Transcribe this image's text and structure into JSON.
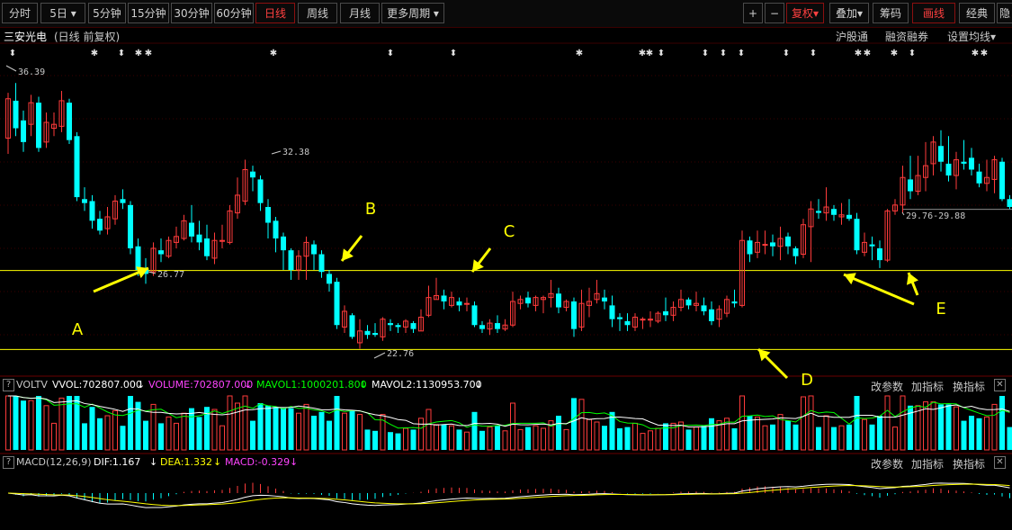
{
  "toolbar": {
    "periods": [
      "分时",
      "5日",
      "5分钟",
      "15分钟",
      "30分钟",
      "60分钟",
      "日线",
      "周线",
      "月线",
      "更多周期"
    ],
    "dropdown_arrow": "▾",
    "plus": "+",
    "minus": "−",
    "fuquan": "复权",
    "diejia": "叠加",
    "chouma": "筹码",
    "huaxian": "画线",
    "jingdian": "经典",
    "yin": "隐"
  },
  "info": {
    "stock_name": "三安光电",
    "period_desc": "(日线 前复权)",
    "hugutong": "沪股通",
    "rongzi": "融资融券",
    "settings": "设置均线"
  },
  "chart_data": {
    "type": "candlestick",
    "annotations": [
      {
        "label": "36.39"
      },
      {
        "label": "32.38"
      },
      {
        "label": "26.77"
      },
      {
        "label": "22.76"
      },
      {
        "label": "29.76-29.88"
      }
    ],
    "arrow_labels": [
      "A",
      "B",
      "C",
      "D",
      "E"
    ],
    "support_line_levels": [
      26.77,
      22.76,
      29.88
    ],
    "price_range": [
      22.0,
      37.5
    ],
    "candles": [
      [
        33.5,
        35.5,
        35.8,
        32.7
      ],
      [
        35.4,
        34.0,
        36.3,
        33.6
      ],
      [
        34.4,
        33.3,
        34.9,
        32.8
      ],
      [
        34.2,
        35.3,
        35.7,
        33.6
      ],
      [
        35.3,
        33.0,
        35.6,
        32.8
      ],
      [
        33.3,
        34.3,
        34.8,
        33.0
      ],
      [
        34.0,
        34.2,
        34.8,
        33.6
      ],
      [
        34.1,
        35.4,
        35.9,
        33.8
      ],
      [
        35.3,
        33.4,
        35.5,
        33.2
      ],
      [
        33.6,
        30.5,
        33.8,
        30.3
      ],
      [
        30.4,
        30.2,
        31.0,
        29.8
      ],
      [
        30.3,
        29.3,
        30.6,
        28.9
      ],
      [
        29.4,
        28.8,
        29.8,
        28.6
      ],
      [
        28.9,
        29.5,
        30.0,
        28.6
      ],
      [
        29.4,
        30.3,
        30.6,
        29.1
      ],
      [
        30.4,
        30.2,
        30.9,
        29.9
      ],
      [
        30.1,
        27.9,
        30.3,
        27.6
      ],
      [
        28.0,
        26.8,
        28.4,
        26.5
      ],
      [
        26.9,
        26.6,
        27.4,
        26.1
      ],
      [
        26.7,
        27.9,
        28.2,
        26.5
      ],
      [
        27.8,
        27.6,
        28.4,
        27.2
      ],
      [
        27.5,
        28.3,
        28.5,
        27.4
      ],
      [
        28.2,
        28.5,
        29.0,
        27.9
      ],
      [
        28.4,
        29.3,
        29.6,
        28.3
      ],
      [
        29.2,
        28.5,
        30.1,
        28.2
      ],
      [
        28.6,
        28.2,
        29.3,
        27.8
      ],
      [
        28.4,
        27.5,
        29.1,
        27.3
      ],
      [
        27.4,
        28.3,
        28.7,
        27.1
      ],
      [
        28.3,
        28.3,
        29.1,
        27.9
      ],
      [
        28.2,
        29.8,
        30.1,
        28.1
      ],
      [
        29.7,
        30.6,
        31.5,
        29.4
      ],
      [
        30.3,
        31.9,
        32.4,
        30.1
      ],
      [
        31.8,
        31.5,
        32.1,
        30.8
      ],
      [
        31.4,
        30.2,
        31.6,
        29.8
      ],
      [
        30.0,
        29.2,
        30.4,
        28.4
      ],
      [
        29.3,
        28.4,
        29.5,
        27.7
      ],
      [
        28.5,
        27.8,
        28.7,
        26.8
      ],
      [
        27.8,
        26.8,
        27.9,
        26.3
      ],
      [
        26.8,
        27.5,
        27.8,
        26.3
      ],
      [
        27.5,
        28.2,
        28.5,
        26.3
      ],
      [
        28.1,
        27.6,
        28.3,
        26.8
      ],
      [
        27.6,
        26.7,
        27.8,
        26.4
      ],
      [
        26.6,
        26.1,
        26.8,
        25.7
      ],
      [
        26.2,
        24.0,
        26.4,
        23.8
      ],
      [
        23.9,
        24.7,
        25.0,
        23.6
      ],
      [
        24.5,
        23.4,
        24.6,
        23.3
      ],
      [
        23.1,
        23.7,
        24.3,
        22.8
      ],
      [
        23.7,
        23.5,
        24.0,
        23.3
      ],
      [
        23.6,
        23.5,
        24.1,
        23.4
      ],
      [
        23.4,
        24.3,
        24.4,
        23.2
      ],
      [
        24.1,
        24.0,
        24.3,
        23.7
      ],
      [
        24.0,
        23.9,
        24.1,
        23.6
      ],
      [
        23.9,
        24.2,
        24.3,
        23.6
      ],
      [
        24.1,
        23.8,
        24.2,
        23.6
      ],
      [
        23.7,
        24.4,
        24.8,
        23.7
      ],
      [
        24.5,
        25.4,
        26.0,
        24.4
      ],
      [
        25.3,
        25.5,
        26.4,
        25.3
      ],
      [
        25.5,
        25.2,
        25.8,
        24.8
      ],
      [
        25.0,
        25.4,
        25.7,
        24.9
      ],
      [
        25.2,
        25.0,
        25.4,
        24.7
      ],
      [
        25.1,
        25.1,
        25.4,
        24.7
      ],
      [
        25.0,
        24.0,
        25.2,
        23.9
      ],
      [
        24.0,
        23.8,
        24.2,
        23.6
      ],
      [
        23.8,
        24.1,
        24.3,
        23.5
      ],
      [
        24.1,
        23.8,
        24.5,
        23.6
      ],
      [
        23.8,
        24.0,
        24.3,
        23.7
      ],
      [
        24.0,
        25.2,
        25.7,
        23.9
      ],
      [
        25.1,
        25.3,
        25.5,
        24.8
      ],
      [
        25.4,
        25.1,
        25.7,
        24.9
      ],
      [
        25.0,
        25.4,
        25.5,
        24.7
      ],
      [
        25.3,
        25.4,
        25.5,
        24.6
      ],
      [
        25.4,
        25.6,
        26.3,
        24.9
      ],
      [
        25.6,
        24.9,
        25.9,
        24.6
      ],
      [
        24.9,
        25.2,
        25.3,
        24.7
      ],
      [
        25.2,
        23.8,
        25.4,
        23.4
      ],
      [
        23.9,
        25.1,
        25.8,
        23.7
      ],
      [
        25.0,
        25.2,
        25.9,
        24.4
      ],
      [
        25.3,
        25.6,
        26.3,
        25.1
      ],
      [
        25.4,
        25.2,
        25.8,
        24.8
      ],
      [
        25.0,
        24.3,
        25.5,
        23.9
      ],
      [
        24.4,
        24.3,
        24.6,
        23.7
      ],
      [
        24.2,
        24.0,
        24.6,
        23.7
      ],
      [
        23.9,
        24.4,
        24.6,
        23.7
      ],
      [
        24.3,
        24.3,
        24.4,
        23.8
      ],
      [
        24.3,
        24.3,
        24.7,
        23.9
      ],
      [
        24.2,
        24.6,
        24.7,
        24.1
      ],
      [
        24.7,
        24.5,
        25.4,
        24.2
      ],
      [
        24.5,
        24.9,
        25.2,
        24.2
      ],
      [
        24.9,
        25.3,
        25.8,
        24.7
      ],
      [
        25.3,
        25.0,
        25.4,
        24.8
      ],
      [
        25.0,
        25.1,
        25.7,
        24.7
      ],
      [
        25.0,
        24.7,
        25.4,
        24.5
      ],
      [
        24.8,
        24.2,
        25.2,
        24.0
      ],
      [
        24.3,
        24.8,
        25.0,
        23.9
      ],
      [
        24.6,
        25.3,
        25.5,
        24.4
      ],
      [
        25.2,
        25.1,
        25.8,
        24.9
      ],
      [
        25.0,
        28.3,
        28.8,
        24.9
      ],
      [
        28.3,
        27.6,
        28.5,
        27.2
      ],
      [
        27.7,
        28.2,
        28.8,
        27.4
      ],
      [
        28.1,
        28.1,
        28.8,
        27.6
      ],
      [
        28.2,
        28.0,
        28.6,
        27.5
      ],
      [
        28.0,
        28.4,
        29.0,
        27.3
      ],
      [
        28.5,
        28.0,
        28.7,
        27.6
      ],
      [
        27.9,
        27.5,
        28.0,
        27.1
      ],
      [
        27.6,
        29.1,
        29.4,
        27.4
      ],
      [
        29.0,
        29.9,
        30.3,
        27.2
      ],
      [
        29.8,
        29.7,
        30.4,
        29.4
      ],
      [
        29.7,
        30.0,
        31.0,
        29.3
      ],
      [
        29.9,
        29.6,
        30.1,
        29.3
      ],
      [
        29.5,
        29.6,
        30.2,
        29.1
      ],
      [
        29.6,
        29.4,
        30.4,
        29.3
      ],
      [
        29.4,
        27.8,
        29.7,
        27.6
      ],
      [
        27.7,
        28.2,
        28.7,
        27.5
      ],
      [
        28.1,
        28.0,
        28.5,
        27.3
      ],
      [
        27.9,
        27.3,
        28.3,
        26.9
      ],
      [
        27.3,
        29.8,
        29.9,
        27.2
      ],
      [
        29.8,
        30.1,
        30.4,
        29.6
      ],
      [
        30.1,
        31.5,
        32.1,
        29.7
      ],
      [
        31.4,
        30.8,
        32.6,
        30.4
      ],
      [
        30.8,
        31.6,
        32.6,
        30.6
      ],
      [
        31.5,
        32.1,
        33.3,
        30.8
      ],
      [
        32.2,
        33.3,
        33.6,
        31.6
      ],
      [
        33.1,
        32.3,
        33.9,
        31.8
      ],
      [
        32.2,
        31.6,
        33.6,
        31.3
      ],
      [
        31.6,
        32.4,
        32.8,
        30.9
      ],
      [
        32.3,
        32.2,
        33.4,
        31.9
      ],
      [
        32.5,
        31.9,
        33.0,
        31.6
      ],
      [
        31.8,
        31.2,
        32.2,
        31.0
      ],
      [
        31.2,
        31.5,
        32.4,
        30.8
      ],
      [
        31.4,
        32.4,
        32.6,
        30.7
      ],
      [
        32.3,
        30.4,
        32.5,
        30.3
      ],
      [
        30.4,
        30.0,
        30.6,
        29.9
      ]
    ],
    "volume": {
      "label": "VOLTV",
      "vvol": "VVOL:702807.000",
      "volume": "VOLUME:702807.000",
      "mavol1": "MAVOL1:1000201.800",
      "mavol2": "MAVOL2:1130953.700"
    },
    "macd": {
      "label": "MACD(12,26,9)",
      "dif": "DIF:1.167",
      "dea": "DEA:1.332",
      "macd": "MACD:-0.329"
    }
  },
  "panels": {
    "gai_canshu": "改参数",
    "jia_zhibiao": "加指标",
    "huan_zhibiao": "换指标",
    "close_x": "✕",
    "help_q": "?"
  },
  "colors": {
    "up": "#ff3b3b",
    "down": "#00ffff",
    "yellow_line": "#ffff00",
    "arrow": "#ffff00",
    "white": "#ffffff",
    "magenta": "#ff44ff",
    "green": "#00ff00"
  }
}
